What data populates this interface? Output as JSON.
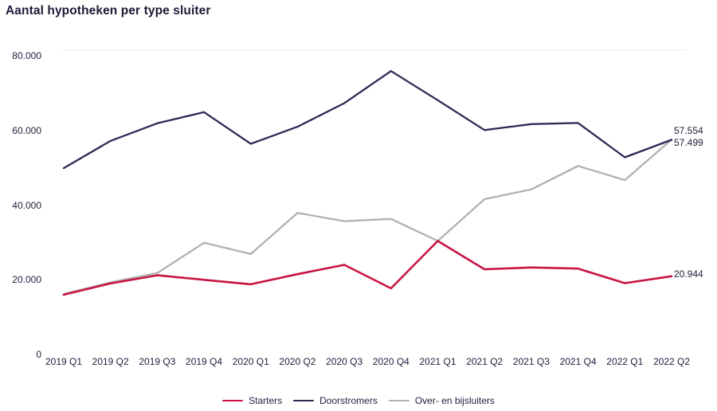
{
  "title": "Aantal hypotheken per type sluiter",
  "colors": {
    "text": "#21203f",
    "title_text": "#1c1b38",
    "grid": "#ececec",
    "starters": "#c81343",
    "doorstromers": "#2c2a54",
    "oversluiters": "#b1b1b1"
  },
  "chart_data": {
    "type": "line",
    "title": "Aantal hypotheken per type sluiter",
    "xlabel": "",
    "ylabel": "",
    "ylim": [
      0,
      80000
    ],
    "grid": "single faint horizontal line at 80.000 only",
    "legend_position": "bottom-center",
    "categories": [
      "2019 Q1",
      "2019 Q2",
      "2019 Q3",
      "2019 Q4",
      "2020 Q1",
      "2020 Q2",
      "2020 Q3",
      "2020 Q4",
      "2021 Q1",
      "2021 Q2",
      "2021 Q3",
      "2021 Q4",
      "2022 Q1",
      "2022 Q2"
    ],
    "yticks": [
      {
        "value": 80000,
        "label": "80.000"
      },
      {
        "value": 60000,
        "label": "60.000"
      },
      {
        "value": 40000,
        "label": "40.000"
      },
      {
        "value": 20000,
        "label": "20.000"
      },
      {
        "value": 0,
        "label": "0"
      }
    ],
    "series": [
      {
        "name": "Starters",
        "color": "#c81343",
        "values": [
          16000,
          19000,
          21200,
          20000,
          18800,
          21500,
          24000,
          17700,
          30400,
          22800,
          23300,
          23000,
          19100,
          20944
        ],
        "end_label": "20.944"
      },
      {
        "name": "Doorstromers",
        "color": "#2c2a54",
        "values": [
          49900,
          57200,
          61900,
          64900,
          56400,
          61000,
          67300,
          75900,
          68100,
          60100,
          61700,
          62000,
          52800,
          57499
        ],
        "end_label": "57.499"
      },
      {
        "name": "Over- en bijsluiters",
        "color": "#b1b1b1",
        "values": [
          16200,
          19300,
          21800,
          29900,
          26900,
          37900,
          35700,
          36300,
          30400,
          41600,
          44200,
          50500,
          46700,
          57554
        ],
        "end_label": "57.554"
      }
    ]
  }
}
